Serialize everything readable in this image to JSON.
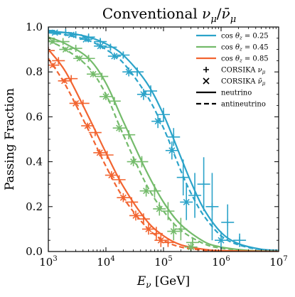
{
  "chart_data": {
    "type": "line",
    "title": "Conventional ν_μ/ν̄_μ",
    "title_parts": {
      "main": "Conventional ",
      "nu": "ν",
      "sub": "μ",
      "slash": "/",
      "nubar": "ν̄",
      "subbar": "μ"
    },
    "xlabel": "E_ν [GeV]",
    "xlabel_parts": {
      "E": "E",
      "sub": "ν",
      "unit": " [GeV]"
    },
    "ylabel": "Passing Fraction",
    "x_scale": "log",
    "xlim": [
      1000,
      10000000
    ],
    "ylim": [
      0.0,
      1.0
    ],
    "x_ticks": [
      {
        "value": 1000,
        "base": "10",
        "exp": "3"
      },
      {
        "value": 10000,
        "base": "10",
        "exp": "4"
      },
      {
        "value": 100000,
        "base": "10",
        "exp": "5"
      },
      {
        "value": 1000000,
        "base": "10",
        "exp": "6"
      },
      {
        "value": 10000000,
        "base": "10",
        "exp": "7"
      }
    ],
    "y_ticks": [
      "0.0",
      "0.2",
      "0.4",
      "0.6",
      "0.8",
      "1.0"
    ],
    "grid": false,
    "legend_position": "top-right",
    "series": [
      {
        "name": "cos θz = 0.25",
        "legend_parts": {
          "cos": "cos ",
          "theta": "θ",
          "sub": "z",
          "eq": " = 0.25"
        },
        "color": "#2ba3c9",
        "neutrino": [
          [
            1000,
            0.98
          ],
          [
            2000,
            0.975
          ],
          [
            5000,
            0.955
          ],
          [
            10000,
            0.925
          ],
          [
            20000,
            0.875
          ],
          [
            50000,
            0.755
          ],
          [
            100000,
            0.61
          ],
          [
            200000,
            0.42
          ],
          [
            300000,
            0.31
          ],
          [
            500000,
            0.19
          ],
          [
            1000000,
            0.085
          ],
          [
            2000000,
            0.035
          ],
          [
            5000000,
            0.01
          ],
          [
            10000000,
            0.005
          ]
        ],
        "antineutrino": [
          [
            1000,
            0.975
          ],
          [
            2000,
            0.965
          ],
          [
            5000,
            0.94
          ],
          [
            10000,
            0.9
          ],
          [
            20000,
            0.84
          ],
          [
            50000,
            0.7
          ],
          [
            100000,
            0.55
          ],
          [
            200000,
            0.36
          ],
          [
            300000,
            0.26
          ],
          [
            500000,
            0.16
          ],
          [
            1000000,
            0.07
          ],
          [
            2000000,
            0.03
          ],
          [
            5000000,
            0.008
          ],
          [
            10000000,
            0.004
          ]
        ],
        "corsika_nu": [
          {
            "x": 1000,
            "y": 0.985,
            "yerr": 0.01
          },
          {
            "x": 2000,
            "y": 0.975,
            "yerr": 0.01
          },
          {
            "x": 3000,
            "y": 0.965,
            "yerr": 0.01
          },
          {
            "x": 5000,
            "y": 0.955,
            "yerr": 0.01
          },
          {
            "x": 8000,
            "y": 0.935,
            "yerr": 0.012
          },
          {
            "x": 12000,
            "y": 0.91,
            "yerr": 0.014
          },
          {
            "x": 20000,
            "y": 0.875,
            "yerr": 0.016
          },
          {
            "x": 35000,
            "y": 0.8,
            "yerr": 0.02
          },
          {
            "x": 60000,
            "y": 0.715,
            "yerr": 0.025
          },
          {
            "x": 100000,
            "y": 0.61,
            "yerr": 0.03
          },
          {
            "x": 150000,
            "y": 0.51,
            "yerr": 0.04
          },
          {
            "x": 220000,
            "y": 0.33,
            "yerr": 0.08
          },
          {
            "x": 350000,
            "y": 0.25,
            "yerr": 0.1
          },
          {
            "x": 500000,
            "y": 0.3,
            "yerr": 0.12
          },
          {
            "x": 700000,
            "y": 0.2,
            "yerr": 0.15
          },
          {
            "x": 1300000,
            "y": 0.13,
            "yerr": 0.08
          },
          {
            "x": 2100000,
            "y": 0.05,
            "yerr": 0.03
          }
        ],
        "corsika_nubar": [
          {
            "x": 1300,
            "y": 0.975,
            "yerr": 0.01
          },
          {
            "x": 2500,
            "y": 0.965,
            "yerr": 0.01
          },
          {
            "x": 4500,
            "y": 0.945,
            "yerr": 0.012
          },
          {
            "x": 8000,
            "y": 0.915,
            "yerr": 0.014
          },
          {
            "x": 14000,
            "y": 0.87,
            "yerr": 0.016
          },
          {
            "x": 25000,
            "y": 0.8,
            "yerr": 0.02
          },
          {
            "x": 45000,
            "y": 0.7,
            "yerr": 0.025
          },
          {
            "x": 80000,
            "y": 0.58,
            "yerr": 0.03
          },
          {
            "x": 140000,
            "y": 0.45,
            "yerr": 0.04
          },
          {
            "x": 250000,
            "y": 0.22,
            "yerr": 0.08
          },
          {
            "x": 1000000,
            "y": 0.05,
            "yerr": 0.04
          }
        ]
      },
      {
        "name": "cos θz = 0.45",
        "legend_parts": {
          "cos": "cos ",
          "theta": "θ",
          "sub": "z",
          "eq": " = 0.45"
        },
        "color": "#74bb6b",
        "neutrino": [
          [
            1000,
            0.955
          ],
          [
            2000,
            0.925
          ],
          [
            5000,
            0.86
          ],
          [
            10000,
            0.75
          ],
          [
            20000,
            0.58
          ],
          [
            50000,
            0.36
          ],
          [
            100000,
            0.22
          ],
          [
            200000,
            0.12
          ],
          [
            500000,
            0.045
          ],
          [
            1000000,
            0.02
          ],
          [
            3000000,
            0.005
          ],
          [
            10000000,
            0.001
          ]
        ],
        "antineutrino": [
          [
            1000,
            0.94
          ],
          [
            2000,
            0.9
          ],
          [
            5000,
            0.82
          ],
          [
            10000,
            0.7
          ],
          [
            20000,
            0.52
          ],
          [
            50000,
            0.3
          ],
          [
            100000,
            0.18
          ],
          [
            200000,
            0.095
          ],
          [
            500000,
            0.035
          ],
          [
            1000000,
            0.015
          ],
          [
            3000000,
            0.004
          ],
          [
            10000000,
            0.001
          ]
        ],
        "corsika_nu": [
          {
            "x": 1000,
            "y": 0.95,
            "yerr": 0.01
          },
          {
            "x": 1800,
            "y": 0.935,
            "yerr": 0.01
          },
          {
            "x": 3000,
            "y": 0.905,
            "yerr": 0.012
          },
          {
            "x": 5000,
            "y": 0.86,
            "yerr": 0.014
          },
          {
            "x": 8500,
            "y": 0.78,
            "yerr": 0.016
          },
          {
            "x": 14000,
            "y": 0.67,
            "yerr": 0.018
          },
          {
            "x": 25000,
            "y": 0.52,
            "yerr": 0.02
          },
          {
            "x": 42000,
            "y": 0.4,
            "yerr": 0.025
          },
          {
            "x": 70000,
            "y": 0.27,
            "yerr": 0.03
          },
          {
            "x": 120000,
            "y": 0.18,
            "yerr": 0.04
          },
          {
            "x": 200000,
            "y": 0.1,
            "yerr": 0.05
          },
          {
            "x": 320000,
            "y": 0.04,
            "yerr": 0.02
          }
        ],
        "corsika_nubar": [
          {
            "x": 1200,
            "y": 0.935,
            "yerr": 0.01
          },
          {
            "x": 2000,
            "y": 0.9,
            "yerr": 0.01
          },
          {
            "x": 3500,
            "y": 0.86,
            "yerr": 0.012
          },
          {
            "x": 6000,
            "y": 0.79,
            "yerr": 0.014
          },
          {
            "x": 10000,
            "y": 0.69,
            "yerr": 0.016
          },
          {
            "x": 17000,
            "y": 0.55,
            "yerr": 0.018
          },
          {
            "x": 30000,
            "y": 0.4,
            "yerr": 0.02
          },
          {
            "x": 50000,
            "y": 0.27,
            "yerr": 0.025
          },
          {
            "x": 85000,
            "y": 0.19,
            "yerr": 0.03
          },
          {
            "x": 150000,
            "y": 0.09,
            "yerr": 0.04
          },
          {
            "x": 300000,
            "y": 0.02,
            "yerr": 0.02
          }
        ]
      },
      {
        "name": "cos θz = 0.85",
        "legend_parts": {
          "cos": "cos ",
          "theta": "θ",
          "sub": "z",
          "eq": " = 0.85"
        },
        "color": "#f26430",
        "neutrino": [
          [
            1000,
            0.9
          ],
          [
            2000,
            0.8
          ],
          [
            5000,
            0.6
          ],
          [
            10000,
            0.44
          ],
          [
            20000,
            0.29
          ],
          [
            50000,
            0.14
          ],
          [
            100000,
            0.07
          ],
          [
            200000,
            0.03
          ],
          [
            500000,
            0.01
          ],
          [
            1000000,
            0.004
          ],
          [
            10000000,
            0.0
          ]
        ],
        "antineutrino": [
          [
            1000,
            0.86
          ],
          [
            2000,
            0.74
          ],
          [
            5000,
            0.54
          ],
          [
            10000,
            0.38
          ],
          [
            20000,
            0.24
          ],
          [
            50000,
            0.11
          ],
          [
            100000,
            0.05
          ],
          [
            200000,
            0.02
          ],
          [
            500000,
            0.006
          ],
          [
            1000000,
            0.002
          ],
          [
            10000000,
            0.0
          ]
        ],
        "corsika_nu": [
          {
            "x": 1000,
            "y": 0.895,
            "yerr": 0.01
          },
          {
            "x": 1500,
            "y": 0.85,
            "yerr": 0.01
          },
          {
            "x": 2500,
            "y": 0.77,
            "yerr": 0.012
          },
          {
            "x": 4000,
            "y": 0.66,
            "yerr": 0.014
          },
          {
            "x": 6500,
            "y": 0.53,
            "yerr": 0.016
          },
          {
            "x": 10500,
            "y": 0.43,
            "yerr": 0.018
          },
          {
            "x": 17000,
            "y": 0.32,
            "yerr": 0.02
          },
          {
            "x": 28000,
            "y": 0.22,
            "yerr": 0.022
          },
          {
            "x": 45000,
            "y": 0.145,
            "yerr": 0.025
          },
          {
            "x": 75000,
            "y": 0.08,
            "yerr": 0.03
          },
          {
            "x": 120000,
            "y": 0.04,
            "yerr": 0.02
          }
        ],
        "corsika_nubar": [
          {
            "x": 1200,
            "y": 0.83,
            "yerr": 0.01
          },
          {
            "x": 1900,
            "y": 0.76,
            "yerr": 0.01
          },
          {
            "x": 3000,
            "y": 0.66,
            "yerr": 0.012
          },
          {
            "x": 4800,
            "y": 0.56,
            "yerr": 0.014
          },
          {
            "x": 7800,
            "y": 0.44,
            "yerr": 0.016
          },
          {
            "x": 12500,
            "y": 0.34,
            "yerr": 0.018
          },
          {
            "x": 20000,
            "y": 0.24,
            "yerr": 0.02
          },
          {
            "x": 33000,
            "y": 0.16,
            "yerr": 0.022
          },
          {
            "x": 55000,
            "y": 0.1,
            "yerr": 0.025
          },
          {
            "x": 90000,
            "y": 0.05,
            "yerr": 0.03
          }
        ]
      }
    ],
    "legend_markers": [
      {
        "label": "CORSIKA ν_μ",
        "parts": {
          "txt": "CORSIKA ",
          "nu": "ν",
          "sub": "μ"
        },
        "marker": "plus"
      },
      {
        "label": "CORSIKA ν̄_μ",
        "parts": {
          "txt": "CORSIKA ",
          "nu": "ν̄",
          "sub": "μ"
        },
        "marker": "cross"
      },
      {
        "label": "neutrino",
        "parts": {
          "txt": "neutrino"
        },
        "line": "solid"
      },
      {
        "label": "antineutrino",
        "parts": {
          "txt": "antineutrino"
        },
        "line": "dashed"
      }
    ]
  }
}
